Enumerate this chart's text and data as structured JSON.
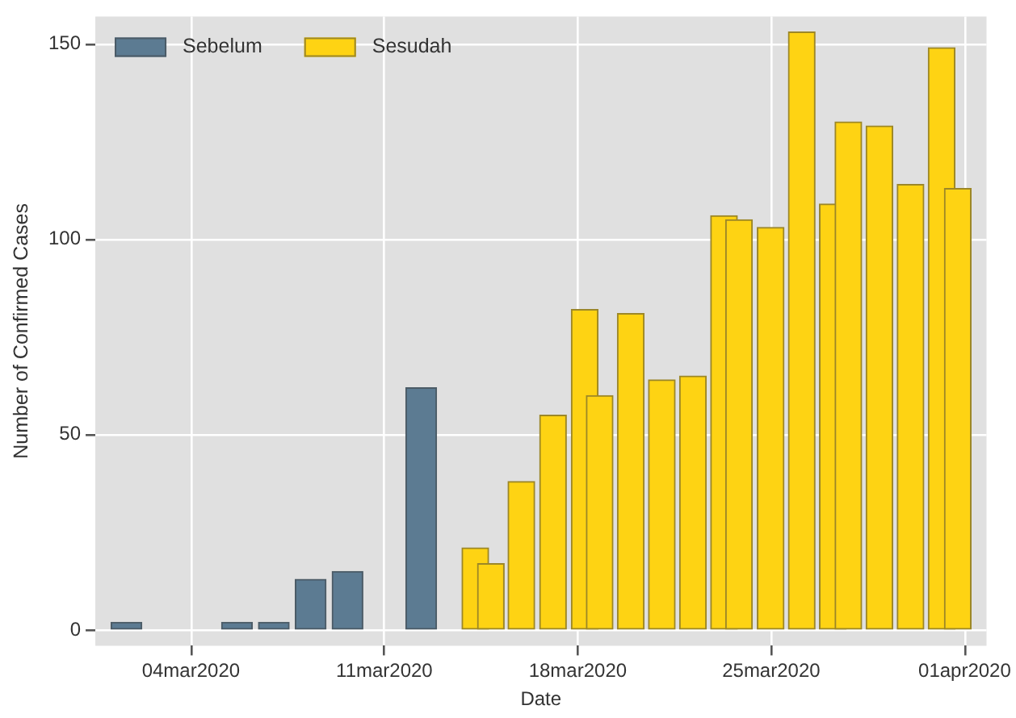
{
  "chart_data": {
    "type": "bar",
    "xlabel": "Date",
    "ylabel": "Number of Confirmed Cases",
    "series": [
      {
        "name": "Sebelum",
        "color": "#5c7b92",
        "x": [
          "2020-03-01T16:00",
          "2020-03-05T16:00",
          "2020-03-07T00:00",
          "2020-03-08T08:00",
          "2020-03-09T16:00",
          "2020-03-12T08:00"
        ],
        "values": [
          2,
          2,
          2,
          13,
          15,
          62
        ]
      },
      {
        "name": "Sesudah",
        "color": "#fed313",
        "x": [
          "2020-03-14T07:00",
          "2020-03-14T20:30",
          "2020-03-15T23:00",
          "2020-03-17T02:30",
          "2020-03-18T06:00",
          "2020-03-18T19:00",
          "2020-03-19T22:00",
          "2020-03-21T01:00",
          "2020-03-22T04:00",
          "2020-03-23T07:00",
          "2020-03-23T20:00",
          "2020-03-24T23:30",
          "2020-03-26T02:30",
          "2020-03-27T05:30",
          "2020-03-27T19:00",
          "2020-03-28T22:00",
          "2020-03-30T01:00",
          "2020-03-31T04:00",
          "2020-03-31T18:00"
        ],
        "values": [
          21,
          17,
          38,
          55,
          82,
          60,
          81,
          64,
          65,
          106,
          105,
          103,
          153,
          109,
          130,
          129,
          114,
          149,
          113
        ]
      }
    ],
    "xlim": [
      "2020-02-29T13:00",
      "2020-04-01T19:00"
    ],
    "xticks": [
      {
        "value": "2020-03-04",
        "label": "04mar2020"
      },
      {
        "value": "2020-03-11",
        "label": "11mar2020"
      },
      {
        "value": "2020-03-18",
        "label": "18mar2020"
      },
      {
        "value": "2020-03-25",
        "label": "25mar2020"
      },
      {
        "value": "2020-04-01",
        "label": "01apr2020"
      }
    ],
    "ylim": [
      -4,
      157
    ],
    "yticks": [
      0,
      50,
      100,
      150
    ],
    "grid": true,
    "legend": "top left"
  }
}
